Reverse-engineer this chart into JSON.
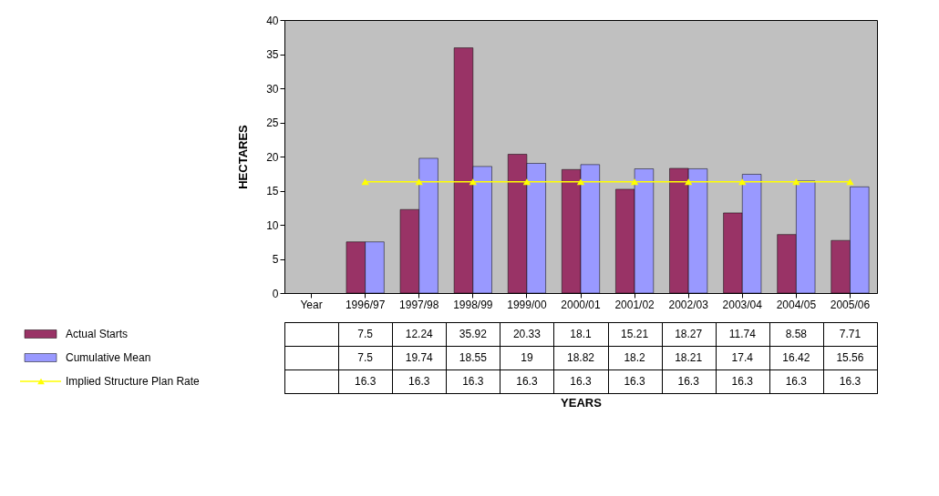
{
  "chart_data": {
    "type": "bar",
    "ylabel": "HECTARES",
    "annotations": [
      "YEARS"
    ],
    "categories": [
      "Year",
      "1996/97",
      "1997/98",
      "1998/99",
      "1999/00",
      "2000/01",
      "2001/02",
      "2002/03",
      "2003/04",
      "2004/05",
      "2005/06"
    ],
    "series": [
      {
        "name": "Actual Starts",
        "color": "#993366",
        "values": [
          null,
          7.5,
          12.24,
          35.92,
          20.33,
          18.1,
          15.21,
          18.27,
          11.74,
          8.58,
          7.71
        ]
      },
      {
        "name": "Cumulative Mean",
        "color": "#9999ff",
        "values": [
          null,
          7.5,
          19.74,
          18.55,
          19,
          18.82,
          18.2,
          18.21,
          17.4,
          16.42,
          15.56
        ]
      },
      {
        "name": "Implied Structure Plan Rate",
        "type": "line",
        "marker": "triangle",
        "color": "#ffff00",
        "values": [
          null,
          16.3,
          16.3,
          16.3,
          16.3,
          16.3,
          16.3,
          16.3,
          16.3,
          16.3,
          16.3
        ]
      }
    ],
    "ylim": [
      0,
      40
    ],
    "yticks": [
      0,
      5,
      10,
      15,
      20,
      25,
      30,
      35,
      40
    ],
    "grid": false,
    "legend": "bottom left",
    "data_labels": true
  }
}
